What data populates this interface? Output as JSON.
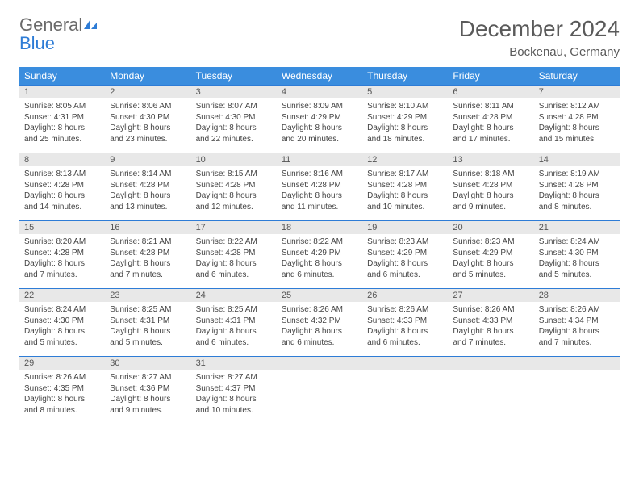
{
  "logo": {
    "general": "General",
    "blue": "Blue"
  },
  "title": "December 2024",
  "location": "Bockenau, Germany",
  "dayNames": [
    "Sunday",
    "Monday",
    "Tuesday",
    "Wednesday",
    "Thursday",
    "Friday",
    "Saturday"
  ],
  "colors": {
    "headerBg": "#3a8dde",
    "headerText": "#ffffff",
    "dayNumBg": "#e8e8e8",
    "borderTop": "#2e7cd6",
    "logoBlue": "#2e7cd6",
    "logoGray": "#6a6a6a",
    "bodyText": "#444444"
  },
  "weeks": [
    [
      {
        "n": "1",
        "sr": "Sunrise: 8:05 AM",
        "ss": "Sunset: 4:31 PM",
        "d1": "Daylight: 8 hours",
        "d2": "and 25 minutes."
      },
      {
        "n": "2",
        "sr": "Sunrise: 8:06 AM",
        "ss": "Sunset: 4:30 PM",
        "d1": "Daylight: 8 hours",
        "d2": "and 23 minutes."
      },
      {
        "n": "3",
        "sr": "Sunrise: 8:07 AM",
        "ss": "Sunset: 4:30 PM",
        "d1": "Daylight: 8 hours",
        "d2": "and 22 minutes."
      },
      {
        "n": "4",
        "sr": "Sunrise: 8:09 AM",
        "ss": "Sunset: 4:29 PM",
        "d1": "Daylight: 8 hours",
        "d2": "and 20 minutes."
      },
      {
        "n": "5",
        "sr": "Sunrise: 8:10 AM",
        "ss": "Sunset: 4:29 PM",
        "d1": "Daylight: 8 hours",
        "d2": "and 18 minutes."
      },
      {
        "n": "6",
        "sr": "Sunrise: 8:11 AM",
        "ss": "Sunset: 4:28 PM",
        "d1": "Daylight: 8 hours",
        "d2": "and 17 minutes."
      },
      {
        "n": "7",
        "sr": "Sunrise: 8:12 AM",
        "ss": "Sunset: 4:28 PM",
        "d1": "Daylight: 8 hours",
        "d2": "and 15 minutes."
      }
    ],
    [
      {
        "n": "8",
        "sr": "Sunrise: 8:13 AM",
        "ss": "Sunset: 4:28 PM",
        "d1": "Daylight: 8 hours",
        "d2": "and 14 minutes."
      },
      {
        "n": "9",
        "sr": "Sunrise: 8:14 AM",
        "ss": "Sunset: 4:28 PM",
        "d1": "Daylight: 8 hours",
        "d2": "and 13 minutes."
      },
      {
        "n": "10",
        "sr": "Sunrise: 8:15 AM",
        "ss": "Sunset: 4:28 PM",
        "d1": "Daylight: 8 hours",
        "d2": "and 12 minutes."
      },
      {
        "n": "11",
        "sr": "Sunrise: 8:16 AM",
        "ss": "Sunset: 4:28 PM",
        "d1": "Daylight: 8 hours",
        "d2": "and 11 minutes."
      },
      {
        "n": "12",
        "sr": "Sunrise: 8:17 AM",
        "ss": "Sunset: 4:28 PM",
        "d1": "Daylight: 8 hours",
        "d2": "and 10 minutes."
      },
      {
        "n": "13",
        "sr": "Sunrise: 8:18 AM",
        "ss": "Sunset: 4:28 PM",
        "d1": "Daylight: 8 hours",
        "d2": "and 9 minutes."
      },
      {
        "n": "14",
        "sr": "Sunrise: 8:19 AM",
        "ss": "Sunset: 4:28 PM",
        "d1": "Daylight: 8 hours",
        "d2": "and 8 minutes."
      }
    ],
    [
      {
        "n": "15",
        "sr": "Sunrise: 8:20 AM",
        "ss": "Sunset: 4:28 PM",
        "d1": "Daylight: 8 hours",
        "d2": "and 7 minutes."
      },
      {
        "n": "16",
        "sr": "Sunrise: 8:21 AM",
        "ss": "Sunset: 4:28 PM",
        "d1": "Daylight: 8 hours",
        "d2": "and 7 minutes."
      },
      {
        "n": "17",
        "sr": "Sunrise: 8:22 AM",
        "ss": "Sunset: 4:28 PM",
        "d1": "Daylight: 8 hours",
        "d2": "and 6 minutes."
      },
      {
        "n": "18",
        "sr": "Sunrise: 8:22 AM",
        "ss": "Sunset: 4:29 PM",
        "d1": "Daylight: 8 hours",
        "d2": "and 6 minutes."
      },
      {
        "n": "19",
        "sr": "Sunrise: 8:23 AM",
        "ss": "Sunset: 4:29 PM",
        "d1": "Daylight: 8 hours",
        "d2": "and 6 minutes."
      },
      {
        "n": "20",
        "sr": "Sunrise: 8:23 AM",
        "ss": "Sunset: 4:29 PM",
        "d1": "Daylight: 8 hours",
        "d2": "and 5 minutes."
      },
      {
        "n": "21",
        "sr": "Sunrise: 8:24 AM",
        "ss": "Sunset: 4:30 PM",
        "d1": "Daylight: 8 hours",
        "d2": "and 5 minutes."
      }
    ],
    [
      {
        "n": "22",
        "sr": "Sunrise: 8:24 AM",
        "ss": "Sunset: 4:30 PM",
        "d1": "Daylight: 8 hours",
        "d2": "and 5 minutes."
      },
      {
        "n": "23",
        "sr": "Sunrise: 8:25 AM",
        "ss": "Sunset: 4:31 PM",
        "d1": "Daylight: 8 hours",
        "d2": "and 5 minutes."
      },
      {
        "n": "24",
        "sr": "Sunrise: 8:25 AM",
        "ss": "Sunset: 4:31 PM",
        "d1": "Daylight: 8 hours",
        "d2": "and 6 minutes."
      },
      {
        "n": "25",
        "sr": "Sunrise: 8:26 AM",
        "ss": "Sunset: 4:32 PM",
        "d1": "Daylight: 8 hours",
        "d2": "and 6 minutes."
      },
      {
        "n": "26",
        "sr": "Sunrise: 8:26 AM",
        "ss": "Sunset: 4:33 PM",
        "d1": "Daylight: 8 hours",
        "d2": "and 6 minutes."
      },
      {
        "n": "27",
        "sr": "Sunrise: 8:26 AM",
        "ss": "Sunset: 4:33 PM",
        "d1": "Daylight: 8 hours",
        "d2": "and 7 minutes."
      },
      {
        "n": "28",
        "sr": "Sunrise: 8:26 AM",
        "ss": "Sunset: 4:34 PM",
        "d1": "Daylight: 8 hours",
        "d2": "and 7 minutes."
      }
    ],
    [
      {
        "n": "29",
        "sr": "Sunrise: 8:26 AM",
        "ss": "Sunset: 4:35 PM",
        "d1": "Daylight: 8 hours",
        "d2": "and 8 minutes."
      },
      {
        "n": "30",
        "sr": "Sunrise: 8:27 AM",
        "ss": "Sunset: 4:36 PM",
        "d1": "Daylight: 8 hours",
        "d2": "and 9 minutes."
      },
      {
        "n": "31",
        "sr": "Sunrise: 8:27 AM",
        "ss": "Sunset: 4:37 PM",
        "d1": "Daylight: 8 hours",
        "d2": "and 10 minutes."
      },
      null,
      null,
      null,
      null
    ]
  ]
}
